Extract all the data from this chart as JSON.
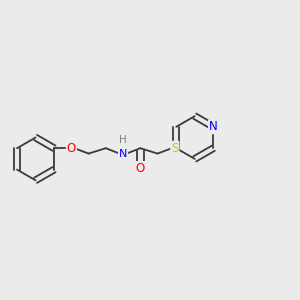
{
  "background_color": "#ebebeb",
  "bond_color": "#3a3a3a",
  "atom_colors": {
    "O": "#ff0000",
    "N": "#0000ff",
    "S": "#cccc00",
    "H_color": "#808080",
    "C": "#3a3a3a"
  },
  "font_size": 8.5,
  "figsize": [
    3.0,
    3.0
  ],
  "dpi": 100
}
